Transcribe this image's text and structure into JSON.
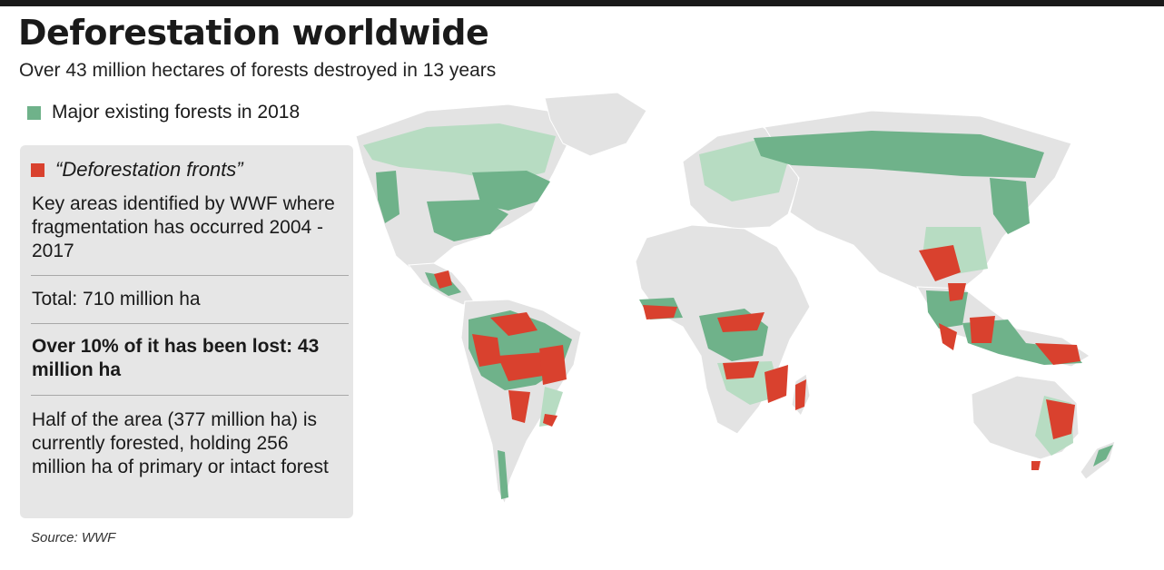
{
  "header": {
    "title": "Deforestation worldwide",
    "subtitle": "Over 43 million hectares of forests destroyed in 13 years"
  },
  "legend": {
    "forest_label": "Major existing forests in 2018",
    "forest_color": "#6fb28a",
    "fronts_label": "“Deforestation fronts”",
    "fronts_color": "#d9412e"
  },
  "panel": {
    "description": "Key areas identified by WWF where fragmentation has occurred 2004 - 2017",
    "total": "Total: 710 million ha",
    "lost": "Over 10% of it has been lost: 43 million ha",
    "half": "Half of the area (377 million ha) is currently forested, holding 256 million ha of primary or intact forest"
  },
  "source": "Source: WWF",
  "colors": {
    "land": "#e3e3e3",
    "forest": "#6fb28a",
    "forest_light": "#b7dcc2",
    "front": "#d9412e",
    "front_dark": "#8b2a1f"
  }
}
